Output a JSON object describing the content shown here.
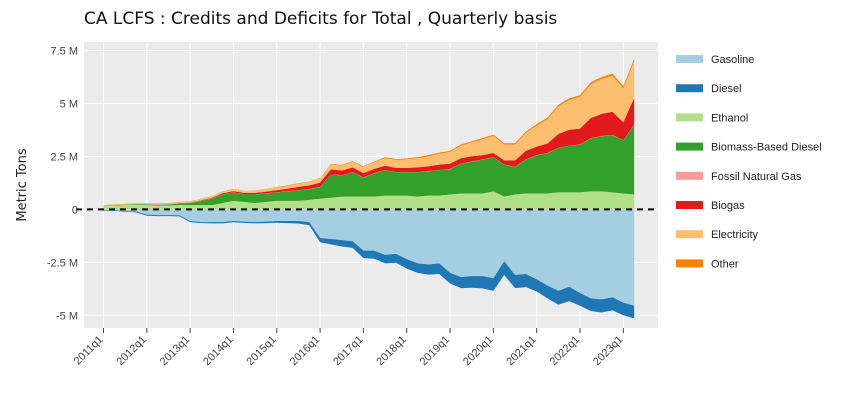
{
  "chart_data": {
    "type": "area",
    "title": "CA LCFS :  Credits and Deficits for Total ,  Quarterly  basis",
    "xlabel": "",
    "ylabel": "Metric Tons",
    "ylim": [
      -5.6,
      7.9
    ],
    "y_unit": "millions of metric tons",
    "yticks": [
      -5,
      -2.5,
      0,
      2.5,
      5,
      7.5
    ],
    "ytick_labels": [
      "-5 M",
      "-2.5 M",
      "0",
      "2.5 M",
      "5 M",
      "7.5 M"
    ],
    "xticks": [
      "2011q1",
      "2012q1",
      "2013q1",
      "2014q1",
      "2015q1",
      "2016q1",
      "2017q1",
      "2018q1",
      "2019q1",
      "2020q1",
      "2021q1",
      "2022q1",
      "2023q1"
    ],
    "xlim": [
      2010.55,
      2023.8
    ],
    "x": [
      2011.0,
      2011.25,
      2011.5,
      2011.75,
      2012.0,
      2012.25,
      2012.5,
      2012.75,
      2013.0,
      2013.25,
      2013.5,
      2013.75,
      2014.0,
      2014.25,
      2014.5,
      2014.75,
      2015.0,
      2015.25,
      2015.5,
      2015.75,
      2016.0,
      2016.25,
      2016.5,
      2016.75,
      2017.0,
      2017.25,
      2017.5,
      2017.75,
      2018.0,
      2018.25,
      2018.5,
      2018.75,
      2019.0,
      2019.25,
      2019.5,
      2019.75,
      2020.0,
      2020.25,
      2020.5,
      2020.75,
      2021.0,
      2021.25,
      2021.5,
      2021.75,
      2022.0,
      2022.25,
      2022.5,
      2022.75,
      2023.0,
      2023.25
    ],
    "zero_line": "dashed black",
    "legend_position": "right",
    "series": [
      {
        "name": "Gasoline",
        "color": "#a6cee3",
        "values": [
          -0.05,
          -0.05,
          -0.08,
          -0.1,
          -0.25,
          -0.27,
          -0.27,
          -0.28,
          -0.55,
          -0.6,
          -0.6,
          -0.6,
          -0.55,
          -0.58,
          -0.6,
          -0.58,
          -0.55,
          -0.55,
          -0.55,
          -0.6,
          -1.35,
          -1.4,
          -1.45,
          -1.5,
          -1.95,
          -1.95,
          -2.15,
          -2.1,
          -2.35,
          -2.55,
          -2.6,
          -2.55,
          -3.0,
          -3.2,
          -3.15,
          -3.15,
          -3.25,
          -2.45,
          -3.1,
          -3.05,
          -3.3,
          -3.6,
          -3.85,
          -3.65,
          -3.95,
          -4.2,
          -4.25,
          -4.15,
          -4.4,
          -4.55
        ]
      },
      {
        "name": "Diesel",
        "color": "#1f78b4",
        "values": [
          -0.02,
          -0.02,
          -0.03,
          -0.04,
          -0.05,
          -0.05,
          -0.05,
          -0.05,
          -0.05,
          -0.05,
          -0.06,
          -0.06,
          -0.06,
          -0.06,
          -0.06,
          -0.07,
          -0.08,
          -0.1,
          -0.12,
          -0.15,
          -0.2,
          -0.25,
          -0.3,
          -0.32,
          -0.35,
          -0.38,
          -0.4,
          -0.42,
          -0.45,
          -0.45,
          -0.48,
          -0.5,
          -0.5,
          -0.52,
          -0.55,
          -0.58,
          -0.6,
          -0.65,
          -0.62,
          -0.62,
          -0.58,
          -0.6,
          -0.65,
          -0.68,
          -0.6,
          -0.6,
          -0.62,
          -0.62,
          -0.6,
          -0.6
        ]
      },
      {
        "name": "Ethanol",
        "color": "#b2df8a",
        "values": [
          0.15,
          0.18,
          0.2,
          0.2,
          0.2,
          0.18,
          0.18,
          0.2,
          0.2,
          0.2,
          0.2,
          0.3,
          0.4,
          0.35,
          0.3,
          0.35,
          0.4,
          0.4,
          0.4,
          0.45,
          0.5,
          0.55,
          0.6,
          0.6,
          0.6,
          0.6,
          0.65,
          0.65,
          0.65,
          0.6,
          0.65,
          0.65,
          0.7,
          0.75,
          0.75,
          0.75,
          0.85,
          0.6,
          0.7,
          0.75,
          0.75,
          0.75,
          0.8,
          0.8,
          0.8,
          0.85,
          0.85,
          0.8,
          0.75,
          0.7
        ]
      },
      {
        "name": "Biomass-Based Diesel",
        "color": "#33a02c",
        "values": [
          0.01,
          0.02,
          0.02,
          0.03,
          0.03,
          0.04,
          0.05,
          0.08,
          0.1,
          0.2,
          0.3,
          0.4,
          0.4,
          0.35,
          0.4,
          0.4,
          0.4,
          0.45,
          0.5,
          0.5,
          0.55,
          1.1,
          1.0,
          1.15,
          0.9,
          1.1,
          1.2,
          1.1,
          1.1,
          1.15,
          1.15,
          1.2,
          1.2,
          1.4,
          1.5,
          1.6,
          1.6,
          1.5,
          1.3,
          1.6,
          1.8,
          1.9,
          2.1,
          2.2,
          2.25,
          2.5,
          2.6,
          2.7,
          2.5,
          3.3
        ]
      },
      {
        "name": "Fossil Natural Gas",
        "color": "#fb9a99",
        "values": [
          0.01,
          0.01,
          0.01,
          0.01,
          0.01,
          0.01,
          0.01,
          0.01,
          0.01,
          0.01,
          0.01,
          0.01,
          0.01,
          0.01,
          0.01,
          0.01,
          0.01,
          0.01,
          0.01,
          0.01,
          0.01,
          0.01,
          0.01,
          0.01,
          0.01,
          0.01,
          0.01,
          0.01,
          0.01,
          0.01,
          0.01,
          0.01,
          0.01,
          0.01,
          0.01,
          0.01,
          0.01,
          0.01,
          0.01,
          0.01,
          0.01,
          0.01,
          0.01,
          0.01,
          0.01,
          0.01,
          0.01,
          0.01,
          0.01,
          0.01
        ]
      },
      {
        "name": "Biogas",
        "color": "#e31a1c",
        "values": [
          0.0,
          0.0,
          0.0,
          0.0,
          0.0,
          0.0,
          0.0,
          0.01,
          0.01,
          0.02,
          0.03,
          0.05,
          0.05,
          0.06,
          0.07,
          0.08,
          0.1,
          0.12,
          0.15,
          0.17,
          0.2,
          0.23,
          0.22,
          0.22,
          0.2,
          0.2,
          0.2,
          0.2,
          0.2,
          0.22,
          0.22,
          0.25,
          0.25,
          0.25,
          0.25,
          0.2,
          0.2,
          0.2,
          0.3,
          0.4,
          0.4,
          0.45,
          0.65,
          0.75,
          0.75,
          0.95,
          1.05,
          1.1,
          0.85,
          1.25
        ]
      },
      {
        "name": "Electricity",
        "color": "#fdbf6f",
        "values": [
          0.02,
          0.02,
          0.02,
          0.03,
          0.04,
          0.04,
          0.05,
          0.05,
          0.05,
          0.06,
          0.07,
          0.08,
          0.1,
          0.1,
          0.1,
          0.11,
          0.12,
          0.13,
          0.15,
          0.16,
          0.2,
          0.22,
          0.24,
          0.26,
          0.3,
          0.32,
          0.36,
          0.38,
          0.4,
          0.44,
          0.48,
          0.52,
          0.55,
          0.6,
          0.65,
          0.75,
          0.8,
          0.75,
          0.75,
          0.85,
          1.0,
          1.15,
          1.3,
          1.4,
          1.5,
          1.6,
          1.65,
          1.7,
          1.6,
          1.75
        ]
      },
      {
        "name": "Other",
        "color": "#ff7f00",
        "values": [
          0.01,
          0.01,
          0.01,
          0.01,
          0.01,
          0.01,
          0.01,
          0.01,
          0.01,
          0.01,
          0.01,
          0.01,
          0.01,
          0.01,
          0.01,
          0.01,
          0.02,
          0.02,
          0.02,
          0.02,
          0.02,
          0.03,
          0.03,
          0.03,
          0.03,
          0.03,
          0.04,
          0.04,
          0.04,
          0.04,
          0.05,
          0.05,
          0.05,
          0.05,
          0.05,
          0.06,
          0.06,
          0.06,
          0.06,
          0.06,
          0.07,
          0.07,
          0.08,
          0.08,
          0.08,
          0.09,
          0.09,
          0.1,
          0.1,
          0.1
        ]
      }
    ]
  }
}
